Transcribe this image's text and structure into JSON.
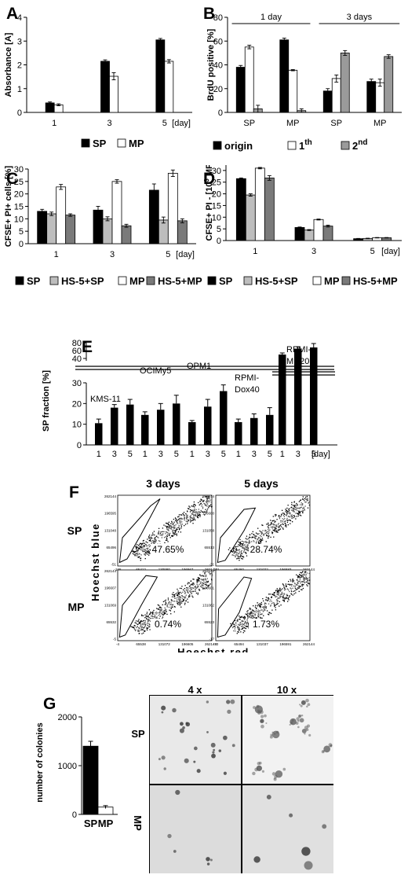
{
  "panels": {
    "A": "A",
    "B": "B",
    "C": "C",
    "D": "D",
    "E": "E",
    "F": "F",
    "G": "G"
  },
  "chart_data": [
    {
      "id": "A",
      "type": "bar",
      "ylabel": "Absorbance [A]",
      "ylim": [
        0,
        4
      ],
      "yticks": [
        0,
        1,
        2,
        3,
        4
      ],
      "categories": [
        "1",
        "3",
        "5"
      ],
      "x_unit": "[day]",
      "series": [
        {
          "name": "SP",
          "color": "#000000",
          "values": [
            0.4,
            2.15,
            3.05
          ],
          "errors": [
            0.04,
            0.06,
            0.06
          ]
        },
        {
          "name": "MP",
          "color": "#ffffff",
          "values": [
            0.32,
            1.52,
            2.15
          ],
          "errors": [
            0.04,
            0.15,
            0.07
          ]
        }
      ]
    },
    {
      "id": "B",
      "type": "bar",
      "ylabel": "BrdU positive [%]",
      "ylim": [
        0,
        80
      ],
      "yticks": [
        0,
        20,
        40,
        60,
        80
      ],
      "group_labels": [
        "1 day",
        "3 days"
      ],
      "categories": [
        "SP",
        "MP",
        "SP",
        "MP"
      ],
      "series": [
        {
          "name": "origin",
          "color": "#000000",
          "values": [
            38,
            61,
            18,
            26
          ],
          "errors": [
            1.5,
            1.5,
            2,
            2
          ]
        },
        {
          "name": "1",
          "sup": "th",
          "color": "#ffffff",
          "values": [
            55,
            35.5,
            28.5,
            25
          ],
          "errors": [
            1.5,
            0.5,
            3,
            3
          ]
        },
        {
          "name": "2",
          "sup": "nd",
          "color": "#9a9a9a",
          "values": [
            3,
            1.5,
            50,
            47
          ],
          "errors": [
            3,
            1.5,
            2,
            1.5
          ]
        }
      ]
    },
    {
      "id": "C",
      "type": "bar",
      "ylabel": "CFSE+ PI+ cells [%]",
      "ylim": [
        0,
        30
      ],
      "yticks": [
        0,
        5,
        10,
        15,
        20,
        25,
        30
      ],
      "categories": [
        "1",
        "3",
        "5"
      ],
      "x_unit": "[day]",
      "series": [
        {
          "name": "SP",
          "color": "#000000",
          "values": [
            13,
            13.5,
            21.5
          ],
          "errors": [
            0.8,
            1.5,
            2.5
          ]
        },
        {
          "name": "HS-5+SP",
          "color": "#bdbdbd",
          "values": [
            12,
            10,
            9.5
          ],
          "errors": [
            0.7,
            0.8,
            1.2
          ]
        },
        {
          "name": "MP",
          "color": "#ffffff",
          "values": [
            22.8,
            25,
            28.3
          ],
          "errors": [
            1,
            0.7,
            1.3
          ]
        },
        {
          "name": "HS-5+MP",
          "color": "#7a7a7a",
          "values": [
            11.5,
            7.2,
            9.2
          ],
          "errors": [
            0.5,
            0.6,
            0.8
          ]
        }
      ]
    },
    {
      "id": "D",
      "type": "bar",
      "ylabel": "CFSE+ PI - [10",
      "ylabel_sup": "3",
      "ylabel_tail": " MFI]",
      "ylim": [
        0,
        35
      ],
      "yticks": [
        0,
        5,
        10,
        15,
        20,
        25,
        30,
        35
      ],
      "categories": [
        "1",
        "3",
        "5"
      ],
      "x_unit": "[day]",
      "series": [
        {
          "name": "SP",
          "color": "#000000",
          "values": [
            26.5,
            5.6,
            0.8
          ],
          "errors": [
            0.3,
            0.2,
            0.1
          ]
        },
        {
          "name": "HS-5+SP",
          "color": "#bdbdbd",
          "values": [
            19.5,
            4.5,
            0.9
          ],
          "errors": [
            0.5,
            0.2,
            0.1
          ]
        },
        {
          "name": "MP",
          "color": "#ffffff",
          "values": [
            31,
            9,
            1.2
          ],
          "errors": [
            0.3,
            0.2,
            0.1
          ]
        },
        {
          "name": "HS-5+MP",
          "color": "#7a7a7a",
          "values": [
            26.8,
            6.2,
            1.2
          ],
          "errors": [
            1,
            0.4,
            0.1
          ]
        }
      ]
    },
    {
      "id": "E",
      "type": "bar",
      "ylabel": "SP fraction [%]",
      "ylim": [
        0,
        30
      ],
      "yticks": [
        0,
        10,
        20,
        30
      ],
      "upper_ticks": [
        40,
        60,
        80
      ],
      "x_unit": "[day]",
      "groups": [
        {
          "name": "KMS-11",
          "days": [
            "1",
            "3",
            "5"
          ],
          "values": [
            10.5,
            18,
            19.5
          ],
          "errors": [
            2,
            1.5,
            2.5
          ]
        },
        {
          "name": "OCIMy5",
          "days": [
            "1",
            "3",
            "5"
          ],
          "values": [
            14.5,
            17,
            20
          ],
          "errors": [
            1.5,
            3,
            4
          ]
        },
        {
          "name": "OPM1",
          "days": [
            "1",
            "3",
            "5"
          ],
          "values": [
            11,
            18.5,
            26
          ],
          "errors": [
            0.8,
            3.5,
            3
          ]
        },
        {
          "name": "RPMI-\nDox40",
          "days": [
            "1",
            "3",
            "5"
          ],
          "values": [
            11,
            13,
            14.5
          ],
          "errors": [
            1.5,
            2,
            3.5
          ]
        },
        {
          "name": "RPMI-\nMR20",
          "days": [
            "1",
            "3",
            "5"
          ],
          "values": [
            50,
            65,
            68
          ],
          "errors": [
            4,
            5,
            10
          ],
          "broken_axis": true
        }
      ]
    },
    {
      "id": "G",
      "type": "bar",
      "ylabel": "number of colonies",
      "ylim": [
        0,
        2000
      ],
      "yticks": [
        0,
        1000,
        2000
      ],
      "categories": [
        "SP",
        "MP"
      ],
      "series": [
        {
          "name": "colonies",
          "color": "#000000",
          "values": [
            1400,
            150
          ],
          "errors": [
            100,
            30
          ],
          "colors": [
            "#000000",
            "#ffffff"
          ]
        }
      ]
    }
  ],
  "flow": {
    "columns": [
      "3 days",
      "5 days"
    ],
    "rows": [
      "SP",
      "MP"
    ],
    "percents": [
      "47.65%",
      "28.74%",
      "0.74%",
      "1.73%"
    ],
    "ylabel": "Hoechst blue",
    "xlabel": "Hoechst red",
    "yticks": [
      [
        "262144",
        "196595",
        "131048",
        "65496",
        "-51"
      ],
      [
        "262144",
        "196600",
        "131058",
        "65513",
        "-31"
      ],
      [
        "262144",
        "196607",
        "131069",
        "65532",
        "-5"
      ],
      [
        "262144",
        "196601",
        "131062",
        "65523",
        "-17"
      ]
    ],
    "xticks": [
      [
        "-165",
        "65412",
        "130990",
        "196567",
        "262144"
      ],
      [
        "-101",
        "65460",
        "131022",
        "196583",
        "262144"
      ],
      [
        "-4",
        "65538",
        "131072",
        "196605",
        "262144"
      ],
      [
        "-70",
        "65494",
        "131037",
        "196591",
        "262144"
      ]
    ]
  },
  "micro": {
    "columns": [
      "4 x",
      "10 x"
    ],
    "rows": [
      "SP",
      "MP"
    ]
  }
}
